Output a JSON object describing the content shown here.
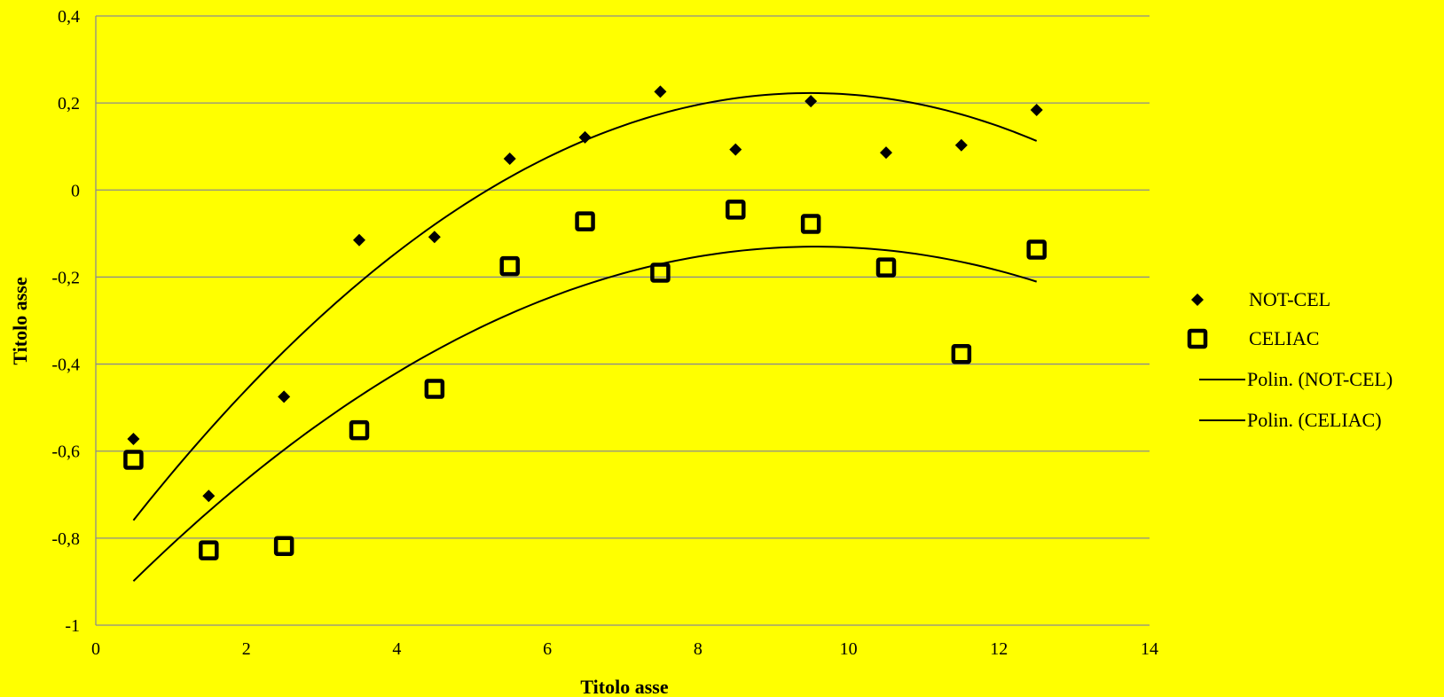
{
  "chart_data": {
    "type": "scatter",
    "xlabel": "Titolo asse",
    "ylabel": "Titolo asse",
    "xlim": [
      0,
      14
    ],
    "ylim": [
      -1,
      0.4
    ],
    "xticks": [
      0,
      2,
      4,
      6,
      8,
      10,
      12,
      14
    ],
    "xtick_labels": [
      "0",
      "2",
      "4",
      "6",
      "8",
      "10",
      "12",
      "14"
    ],
    "yticks": [
      -1,
      -0.8,
      -0.6,
      -0.4,
      -0.2,
      0,
      0.2,
      0.4
    ],
    "ytick_labels": [
      "-1",
      "-0,8",
      "-0,6",
      "-0,4",
      "-0,2",
      "0",
      "0,2",
      "0,4"
    ],
    "grid": "horizontal",
    "legend_position": "right",
    "series": [
      {
        "name": "NOT-CEL",
        "marker": "diamond",
        "color": "#000000",
        "x": [
          0.5,
          1.5,
          2.5,
          3.5,
          4.5,
          5.5,
          6.5,
          7.5,
          8.5,
          9.5,
          10.5,
          11.5,
          12.5
        ],
        "y": [
          -0.572,
          -0.703,
          -0.475,
          -0.115,
          -0.108,
          0.072,
          0.121,
          0.226,
          0.093,
          0.204,
          0.086,
          0.103,
          0.184
        ]
      },
      {
        "name": "CELIAC",
        "marker": "square",
        "color": "#000000",
        "x": [
          0.5,
          1.5,
          2.5,
          3.5,
          4.5,
          5.5,
          6.5,
          7.5,
          8.5,
          9.5,
          10.5,
          11.5,
          12.5
        ],
        "y": [
          -0.62,
          -0.828,
          -0.818,
          -0.552,
          -0.457,
          -0.175,
          -0.072,
          -0.19,
          -0.045,
          -0.078,
          -0.178,
          -0.377,
          -0.137
        ]
      }
    ],
    "trendlines": [
      {
        "name": "Polin. (NOT-CEL)",
        "type": "polynomial",
        "order": 2,
        "x_range": [
          0.5,
          12.5
        ],
        "coefficients": [
          -0.8713,
          0.2306,
          -0.01215
        ]
      },
      {
        "name": "Polin. (CELIAC)",
        "type": "polynomial",
        "order": 2,
        "x_range": [
          0.5,
          12.5
        ],
        "coefficients": [
          -0.9859,
          0.1789,
          -0.00935
        ]
      }
    ]
  }
}
